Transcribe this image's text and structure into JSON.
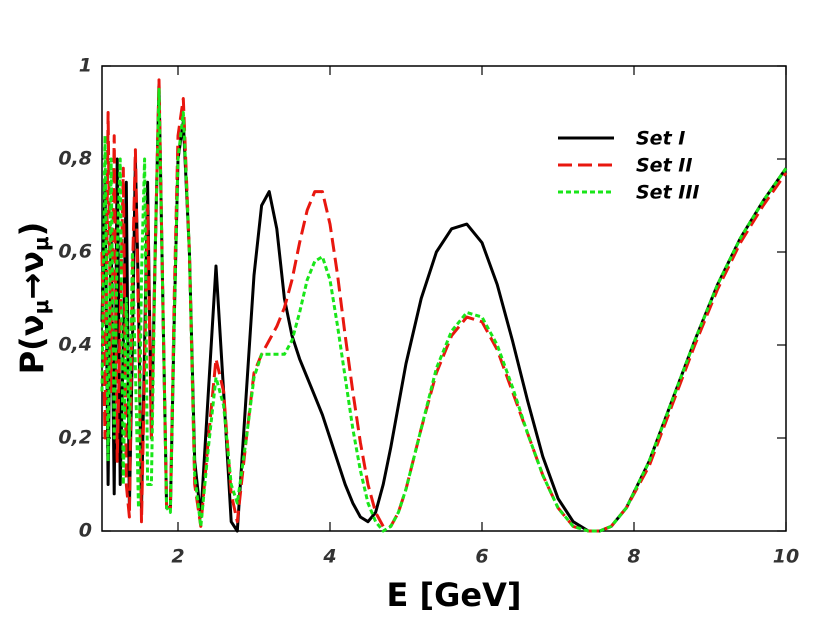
{
  "chart_data": {
    "type": "line",
    "xlabel": "E [GeV]",
    "ylabel": [
      "P(ν",
      "μ",
      "→ν",
      "μ",
      ")"
    ],
    "xlim": [
      1,
      10
    ],
    "ylim": [
      0,
      1
    ],
    "xticks": [
      2,
      4,
      6,
      8,
      10
    ],
    "yticks": [
      0,
      {
        "value": 0.2,
        "label": "0,2"
      },
      {
        "value": 0.4,
        "label": "0,4"
      },
      {
        "value": 0.6,
        "label": "0,6"
      },
      {
        "value": 0.8,
        "label": "0,8"
      },
      1
    ],
    "legend": "upper right",
    "x": [
      1.0,
      1.04,
      1.08,
      1.12,
      1.16,
      1.2,
      1.24,
      1.28,
      1.32,
      1.36,
      1.4,
      1.44,
      1.48,
      1.52,
      1.56,
      1.6,
      1.65,
      1.7,
      1.75,
      1.8,
      1.85,
      1.9,
      1.95,
      2.0,
      2.07,
      2.15,
      2.22,
      2.3,
      2.4,
      2.5,
      2.6,
      2.7,
      2.78,
      2.9,
      3.0,
      3.1,
      3.2,
      3.3,
      3.4,
      3.5,
      3.6,
      3.7,
      3.8,
      3.9,
      4.0,
      4.1,
      4.2,
      4.3,
      4.4,
      4.5,
      4.6,
      4.7,
      4.8,
      4.9,
      5.0,
      5.2,
      5.4,
      5.6,
      5.8,
      6.0,
      6.2,
      6.4,
      6.6,
      6.8,
      7.0,
      7.2,
      7.4,
      7.55,
      7.7,
      7.9,
      8.2,
      8.5,
      8.8,
      9.1,
      9.4,
      9.7,
      10.0
    ],
    "series": [
      {
        "name": "Set I",
        "color": "#000000",
        "dash": "solid",
        "values": [
          0.45,
          0.75,
          0.1,
          0.65,
          0.08,
          0.8,
          0.1,
          0.4,
          0.75,
          0.05,
          0.4,
          0.8,
          0.5,
          0.05,
          0.4,
          0.75,
          0.2,
          0.6,
          0.96,
          0.5,
          0.05,
          0.05,
          0.45,
          0.8,
          0.88,
          0.6,
          0.15,
          0.03,
          0.3,
          0.57,
          0.3,
          0.02,
          0.0,
          0.3,
          0.55,
          0.7,
          0.73,
          0.65,
          0.5,
          0.42,
          0.37,
          0.33,
          0.29,
          0.25,
          0.2,
          0.15,
          0.1,
          0.06,
          0.03,
          0.02,
          0.04,
          0.1,
          0.18,
          0.27,
          0.36,
          0.5,
          0.6,
          0.65,
          0.66,
          0.62,
          0.53,
          0.41,
          0.28,
          0.16,
          0.07,
          0.02,
          0.0,
          0.0,
          0.01,
          0.05,
          0.15,
          0.28,
          0.41,
          0.53,
          0.63,
          0.71,
          0.78
        ]
      },
      {
        "name": "Set II",
        "color": "#e8170f",
        "dash": "dashed",
        "values": [
          0.6,
          0.2,
          0.9,
          0.3,
          0.85,
          0.15,
          0.45,
          0.78,
          0.1,
          0.03,
          0.55,
          0.82,
          0.45,
          0.02,
          0.35,
          0.7,
          0.2,
          0.6,
          0.97,
          0.5,
          0.05,
          0.05,
          0.5,
          0.85,
          0.93,
          0.6,
          0.1,
          0.01,
          0.2,
          0.37,
          0.3,
          0.08,
          0.02,
          0.2,
          0.34,
          0.38,
          0.41,
          0.44,
          0.48,
          0.54,
          0.62,
          0.69,
          0.73,
          0.73,
          0.66,
          0.55,
          0.42,
          0.3,
          0.19,
          0.1,
          0.04,
          0.01,
          0.01,
          0.04,
          0.09,
          0.22,
          0.34,
          0.42,
          0.46,
          0.45,
          0.39,
          0.3,
          0.21,
          0.12,
          0.05,
          0.01,
          0.0,
          0.0,
          0.01,
          0.05,
          0.14,
          0.27,
          0.4,
          0.52,
          0.62,
          0.7,
          0.77
        ]
      },
      {
        "name": "Set III",
        "color": "#19e619",
        "dash": "dotted",
        "values": [
          0.3,
          0.85,
          0.15,
          0.8,
          0.2,
          0.6,
          0.8,
          0.1,
          0.5,
          0.2,
          0.6,
          0.35,
          0.05,
          0.55,
          0.8,
          0.1,
          0.1,
          0.6,
          0.95,
          0.5,
          0.05,
          0.04,
          0.45,
          0.8,
          0.9,
          0.6,
          0.12,
          0.01,
          0.18,
          0.33,
          0.27,
          0.1,
          0.06,
          0.2,
          0.33,
          0.38,
          0.38,
          0.38,
          0.38,
          0.41,
          0.47,
          0.54,
          0.58,
          0.59,
          0.54,
          0.44,
          0.33,
          0.22,
          0.13,
          0.06,
          0.02,
          0.0,
          0.01,
          0.04,
          0.09,
          0.22,
          0.35,
          0.43,
          0.47,
          0.46,
          0.4,
          0.31,
          0.21,
          0.12,
          0.05,
          0.01,
          0.0,
          0.0,
          0.01,
          0.05,
          0.15,
          0.28,
          0.41,
          0.53,
          0.63,
          0.71,
          0.78
        ]
      }
    ]
  }
}
